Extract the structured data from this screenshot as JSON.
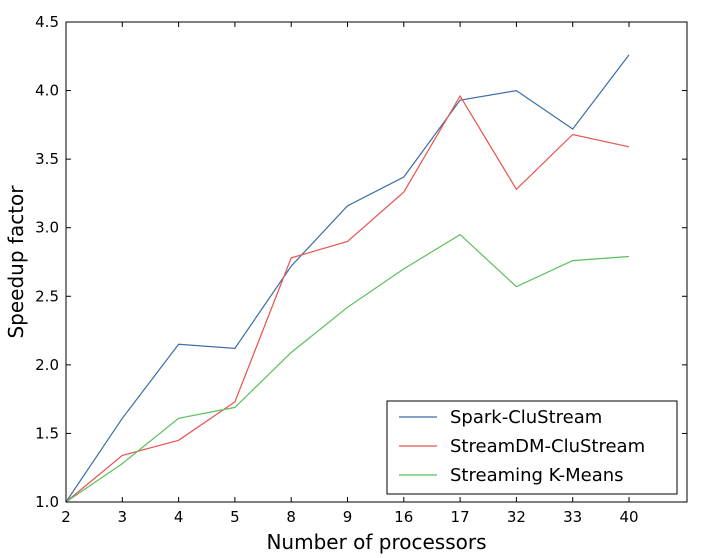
{
  "chart_data": {
    "type": "line",
    "title": "",
    "xlabel": "Number of processors",
    "ylabel": "Speedup factor",
    "categories": [
      "2",
      "3",
      "4",
      "5",
      "8",
      "9",
      "16",
      "17",
      "32",
      "33",
      "40"
    ],
    "ylim": [
      1.0,
      4.5
    ],
    "yticks": [
      "1.0",
      "1.5",
      "2.0",
      "2.5",
      "3.0",
      "3.5",
      "4.0",
      "4.5"
    ],
    "grid": false,
    "legend_position": "bottom-right",
    "series": [
      {
        "name": "Spark-CluStream",
        "color": "#3b6ea5",
        "values": [
          1.0,
          1.61,
          2.15,
          2.12,
          2.72,
          3.16,
          3.37,
          3.93,
          4.0,
          3.72,
          4.26
        ]
      },
      {
        "name": "StreamDM-CluStream",
        "color": "#e8534e",
        "values": [
          1.0,
          1.34,
          1.45,
          1.73,
          2.78,
          2.9,
          3.26,
          3.96,
          3.28,
          3.68,
          3.59
        ]
      },
      {
        "name": "Streaming K-Means",
        "color": "#5cbf5c",
        "values": [
          1.0,
          1.28,
          1.61,
          1.69,
          2.09,
          2.42,
          2.7,
          2.95,
          2.57,
          2.76,
          2.79
        ]
      }
    ]
  }
}
